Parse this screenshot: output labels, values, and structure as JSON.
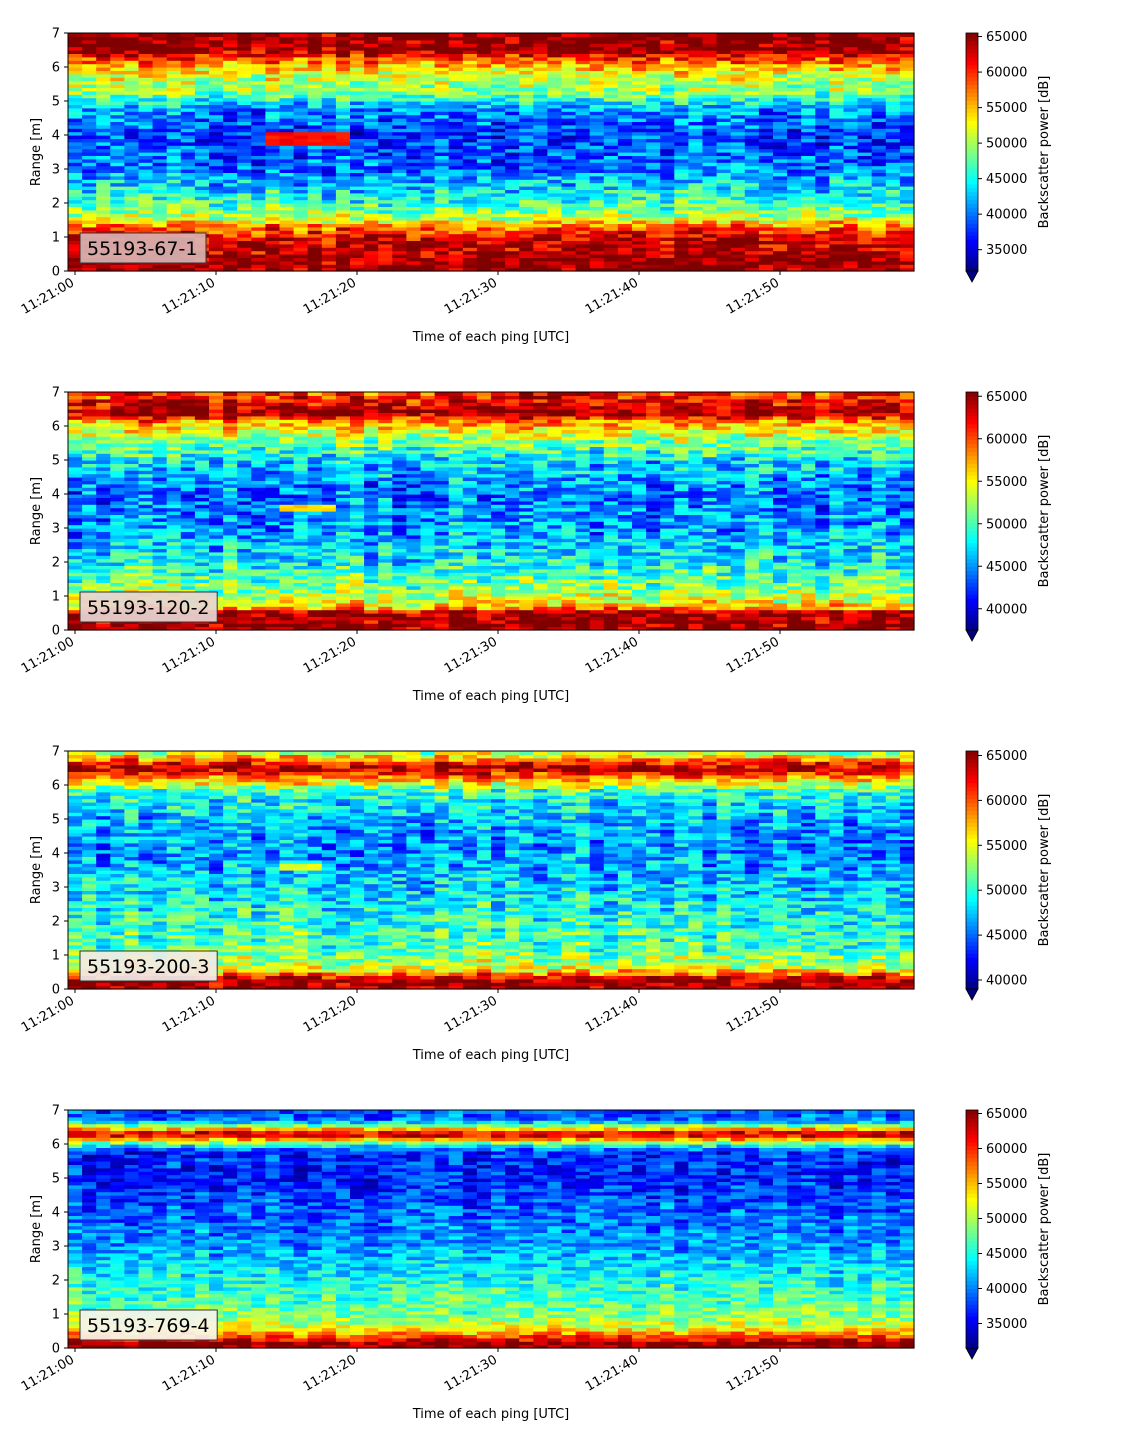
{
  "chart_data": [
    {
      "type": "heatmap",
      "sensor_label": "55193-67-1",
      "label_box_color": "#d9b3b3",
      "xlabel": "Time of each ping [UTC]",
      "ylabel": "Range [m]",
      "xticks": [
        "11:21:00",
        "11:21:10",
        "11:21:20",
        "11:21:30",
        "11:21:40",
        "11:21:50"
      ],
      "x_range": [
        "11:21:00",
        "11:21:59"
      ],
      "yticks": [
        0,
        1,
        2,
        3,
        4,
        5,
        6,
        7
      ],
      "ylim": [
        0,
        7
      ],
      "colorbar_label": "Backscatter power [dB]",
      "colorbar_ticks": [
        35000,
        40000,
        45000,
        50000,
        55000,
        60000,
        65000
      ],
      "colorbar_range": [
        32000,
        65500
      ],
      "colormap": "jet",
      "colorbar_extend": "min",
      "profile": [
        [
          0.0,
          65000
        ],
        [
          0.3,
          65000
        ],
        [
          1.0,
          62000
        ],
        [
          1.3,
          58000
        ],
        [
          1.6,
          50000
        ],
        [
          2.2,
          45000
        ],
        [
          3.0,
          40000
        ],
        [
          4.0,
          38000
        ],
        [
          4.8,
          41000
        ],
        [
          5.2,
          48000
        ],
        [
          5.8,
          52000
        ],
        [
          6.2,
          58000
        ],
        [
          6.5,
          65000
        ],
        [
          7.0,
          65000
        ]
      ],
      "noise": 4500,
      "anomaly": {
        "t0": 14,
        "t1": 19,
        "r0": 3.7,
        "r1": 4.1,
        "value": 61000
      }
    },
    {
      "type": "heatmap",
      "sensor_label": "55193-120-2",
      "label_box_color": "#e8d6d2",
      "xlabel": "Time of each ping [UTC]",
      "ylabel": "Range [m]",
      "xticks": [
        "11:21:00",
        "11:21:10",
        "11:21:20",
        "11:21:30",
        "11:21:40",
        "11:21:50"
      ],
      "x_range": [
        "11:21:00",
        "11:21:59"
      ],
      "yticks": [
        0,
        1,
        2,
        3,
        4,
        5,
        6,
        7
      ],
      "ylim": [
        0,
        7
      ],
      "colorbar_label": "Backscatter power [dB]",
      "colorbar_ticks": [
        40000,
        45000,
        50000,
        55000,
        60000,
        65000
      ],
      "colorbar_range": [
        37500,
        65500
      ],
      "colormap": "jet",
      "colorbar_extend": "min",
      "profile": [
        [
          0.0,
          65000
        ],
        [
          0.5,
          65000
        ],
        [
          0.7,
          56000
        ],
        [
          1.2,
          52000
        ],
        [
          2.0,
          48000
        ],
        [
          3.0,
          45000
        ],
        [
          4.0,
          44000
        ],
        [
          5.0,
          47000
        ],
        [
          5.6,
          52000
        ],
        [
          6.1,
          57000
        ],
        [
          6.4,
          65000
        ],
        [
          6.8,
          62000
        ],
        [
          7.0,
          60000
        ]
      ],
      "noise": 4000,
      "anomaly": {
        "t0": 15,
        "t1": 18,
        "r0": 3.5,
        "r1": 3.7,
        "value": 56000
      }
    },
    {
      "type": "heatmap",
      "sensor_label": "55193-200-3",
      "label_box_color": "#f2ece8",
      "xlabel": "Time of each ping [UTC]",
      "ylabel": "Range [m]",
      "xticks": [
        "11:21:00",
        "11:21:10",
        "11:21:20",
        "11:21:30",
        "11:21:40",
        "11:21:50"
      ],
      "x_range": [
        "11:21:00",
        "11:21:59"
      ],
      "yticks": [
        0,
        1,
        2,
        3,
        4,
        5,
        6,
        7
      ],
      "ylim": [
        0,
        7
      ],
      "colorbar_label": "Backscatter power [dB]",
      "colorbar_ticks": [
        40000,
        45000,
        50000,
        55000,
        60000,
        65000
      ],
      "colorbar_range": [
        39000,
        65500
      ],
      "colormap": "jet",
      "colorbar_extend": "min",
      "profile": [
        [
          0.0,
          65000
        ],
        [
          0.3,
          65000
        ],
        [
          0.6,
          55000
        ],
        [
          1.2,
          51000
        ],
        [
          2.0,
          50000
        ],
        [
          3.0,
          48000
        ],
        [
          4.0,
          46000
        ],
        [
          5.0,
          47000
        ],
        [
          5.8,
          50000
        ],
        [
          6.2,
          58000
        ],
        [
          6.5,
          65000
        ],
        [
          6.8,
          58000
        ],
        [
          7.0,
          52000
        ]
      ],
      "noise": 3600,
      "anomaly": {
        "t0": 15,
        "t1": 17,
        "r0": 3.5,
        "r1": 3.7,
        "value": 55000
      }
    },
    {
      "type": "heatmap",
      "sensor_label": "55193-769-4",
      "label_box_color": "#f7f4ec",
      "xlabel": "Time of each ping [UTC]",
      "ylabel": "Range [m]",
      "xticks": [
        "11:21:00",
        "11:21:10",
        "11:21:20",
        "11:21:30",
        "11:21:40",
        "11:21:50"
      ],
      "x_range": [
        "11:21:00",
        "11:21:59"
      ],
      "yticks": [
        0,
        1,
        2,
        3,
        4,
        5,
        6,
        7
      ],
      "ylim": [
        0,
        7
      ],
      "colorbar_label": "Backscatter power [dB]",
      "colorbar_ticks": [
        35000,
        40000,
        45000,
        50000,
        55000,
        60000,
        65000
      ],
      "colorbar_range": [
        31500,
        65500
      ],
      "colormap": "jet",
      "colorbar_extend": "min",
      "profile": [
        [
          0.0,
          65000
        ],
        [
          0.15,
          65000
        ],
        [
          0.3,
          60000
        ],
        [
          0.6,
          52000
        ],
        [
          1.0,
          48000
        ],
        [
          2.0,
          45000
        ],
        [
          3.0,
          41000
        ],
        [
          4.0,
          39000
        ],
        [
          5.0,
          37000
        ],
        [
          5.8,
          37000
        ],
        [
          6.1,
          52000
        ],
        [
          6.3,
          65000
        ],
        [
          6.5,
          52000
        ],
        [
          6.7,
          40000
        ],
        [
          7.0,
          38000
        ]
      ],
      "noise": 3600,
      "anomaly": null
    }
  ]
}
